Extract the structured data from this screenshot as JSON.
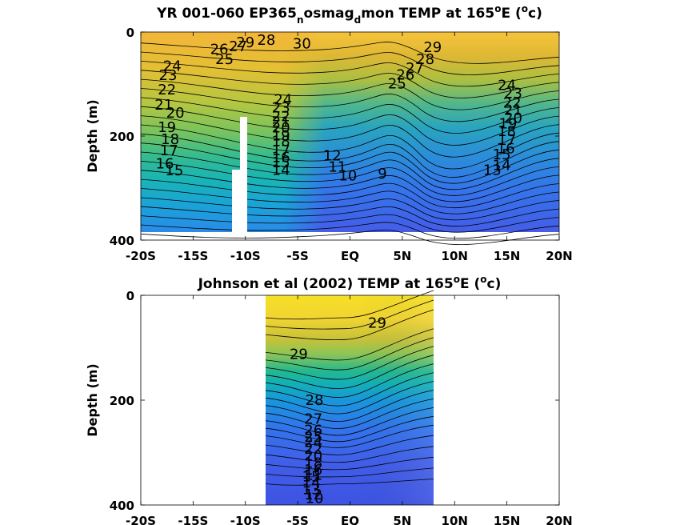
{
  "charts": [
    {
      "title_html": "YR 001-060 EP365<tspan baseline-shift=\"sub\" font-size=\"12\">n</tspan>osmag<tspan baseline-shift=\"sub\" font-size=\"12\">d</tspan>mon TEMP at 165<tspan baseline-shift=\"super\" font-size=\"12\">o</tspan>E (<tspan baseline-shift=\"super\" font-size=\"12\">o</tspan>c)",
      "ylabel": "Depth (m)"
    },
    {
      "title_html": "Johnson et al (2002) TEMP at 165<tspan baseline-shift=\"super\" font-size=\"12\">o</tspan>E (<tspan baseline-shift=\"super\" font-size=\"12\">o</tspan>c)",
      "ylabel": "Depth (m)"
    }
  ],
  "chart_data": [
    {
      "type": "heatmap",
      "title": "YR 001-060 EP365_nosmag_dmon TEMP at 165°E (°c)",
      "xlabel": "",
      "ylabel": "Depth (m)",
      "xlim": [
        -20,
        20
      ],
      "ylim": [
        400,
        0
      ],
      "x_ticks": [
        -20,
        -15,
        -10,
        -5,
        0,
        5,
        10,
        15,
        20
      ],
      "x_tick_labels": [
        "-20S",
        "-15S",
        "-10S",
        "-5S",
        "EQ",
        "5N",
        "10N",
        "15N",
        "20N"
      ],
      "y_ticks": [
        0,
        200,
        400
      ],
      "y_tick_labels": [
        "0",
        "200",
        "400"
      ],
      "data_extent": {
        "x": [
          -20,
          20
        ],
        "depth": [
          0,
          380
        ]
      },
      "masked_region": {
        "x": [
          -10.5,
          -9.8
        ],
        "depth": [
          160,
          380
        ]
      },
      "contour_levels": [
        9,
        10,
        11,
        12,
        13,
        14,
        15,
        16,
        17,
        18,
        19,
        20,
        21,
        22,
        23,
        24,
        25,
        26,
        27,
        28,
        29,
        30
      ],
      "colormap": "parula",
      "color_range": [
        8,
        30
      ],
      "contour_labels": [
        {
          "x": -10,
          "depth": 20,
          "label": "29"
        },
        {
          "x": -8,
          "depth": 15,
          "label": "28"
        },
        {
          "x": -10.7,
          "depth": 28,
          "label": "27"
        },
        {
          "x": -12.5,
          "depth": 33,
          "label": "26"
        },
        {
          "x": -12,
          "depth": 52,
          "label": "25"
        },
        {
          "x": -4.6,
          "depth": 22,
          "label": "30"
        },
        {
          "x": 7.9,
          "depth": 29,
          "label": "29"
        },
        {
          "x": 7.2,
          "depth": 52,
          "label": "28"
        },
        {
          "x": 6.2,
          "depth": 69,
          "label": "27"
        },
        {
          "x": 5.3,
          "depth": 82,
          "label": "26"
        },
        {
          "x": 4.5,
          "depth": 99,
          "label": "25"
        },
        {
          "x": -17,
          "depth": 65,
          "label": "24"
        },
        {
          "x": -17.4,
          "depth": 83,
          "label": "23"
        },
        {
          "x": -17.5,
          "depth": 111,
          "label": "22"
        },
        {
          "x": -17.8,
          "depth": 140,
          "label": "21"
        },
        {
          "x": -16.7,
          "depth": 155,
          "label": "20"
        },
        {
          "x": -17.5,
          "depth": 183,
          "label": "19"
        },
        {
          "x": -17.2,
          "depth": 206,
          "label": "18"
        },
        {
          "x": -17.3,
          "depth": 228,
          "label": "17"
        },
        {
          "x": -17.7,
          "depth": 253,
          "label": "16"
        },
        {
          "x": -16.8,
          "depth": 266,
          "label": "15"
        },
        {
          "x": -6.4,
          "depth": 130,
          "label": "24"
        },
        {
          "x": -6.6,
          "depth": 145,
          "label": "23"
        },
        {
          "x": -6.6,
          "depth": 162,
          "label": "22"
        },
        {
          "x": -6.6,
          "depth": 173,
          "label": "21"
        },
        {
          "x": -6.6,
          "depth": 184,
          "label": "20"
        },
        {
          "x": -6.6,
          "depth": 199,
          "label": "19"
        },
        {
          "x": -6.6,
          "depth": 210,
          "label": "18"
        },
        {
          "x": -6.6,
          "depth": 228,
          "label": "17"
        },
        {
          "x": -6.6,
          "depth": 241,
          "label": "16"
        },
        {
          "x": -6.6,
          "depth": 251,
          "label": "15"
        },
        {
          "x": -6.6,
          "depth": 265,
          "label": "14"
        },
        {
          "x": -1.7,
          "depth": 238,
          "label": "12"
        },
        {
          "x": -1.2,
          "depth": 259,
          "label": "11"
        },
        {
          "x": -0.2,
          "depth": 276,
          "label": "10"
        },
        {
          "x": 3.1,
          "depth": 272,
          "label": "9"
        },
        {
          "x": 15,
          "depth": 102,
          "label": "24"
        },
        {
          "x": 15.6,
          "depth": 118,
          "label": "23"
        },
        {
          "x": 15.5,
          "depth": 136,
          "label": "22"
        },
        {
          "x": 15.6,
          "depth": 150,
          "label": "21"
        },
        {
          "x": 15.6,
          "depth": 165,
          "label": "20"
        },
        {
          "x": 15.1,
          "depth": 176,
          "label": "19"
        },
        {
          "x": 15,
          "depth": 191,
          "label": "18"
        },
        {
          "x": 15,
          "depth": 208,
          "label": "17"
        },
        {
          "x": 14.9,
          "depth": 224,
          "label": "16"
        },
        {
          "x": 14.5,
          "depth": 235,
          "label": "15"
        },
        {
          "x": 14.5,
          "depth": 256,
          "label": "14"
        },
        {
          "x": 13.6,
          "depth": 265,
          "label": "13"
        }
      ]
    },
    {
      "type": "heatmap",
      "title": "Johnson et al (2002) TEMP at 165°E (°c)",
      "xlabel": "",
      "ylabel": "Depth (m)",
      "xlim": [
        -20,
        20
      ],
      "ylim": [
        400,
        0
      ],
      "x_ticks": [
        -20,
        -15,
        -10,
        -5,
        0,
        5,
        10,
        15,
        20
      ],
      "x_tick_labels": [
        "-20S",
        "-15S",
        "-10S",
        "-5S",
        "EQ",
        "5N",
        "10N",
        "15N",
        "20N"
      ],
      "y_ticks": [
        0,
        200,
        400
      ],
      "y_tick_labels": [
        "0",
        "200",
        "400"
      ],
      "data_extent": {
        "x": [
          -8,
          8
        ],
        "depth": [
          0,
          400
        ]
      },
      "contour_levels": [
        10,
        11,
        12,
        13,
        14,
        15,
        16,
        17,
        18,
        19,
        20,
        21,
        22,
        23,
        24,
        25,
        26,
        27,
        28,
        29
      ],
      "colormap": "parula",
      "color_range": [
        8,
        30
      ],
      "contour_labels": [
        {
          "x": -4.9,
          "depth": 112,
          "label": "29"
        },
        {
          "x": 2.6,
          "depth": 53,
          "label": "29"
        },
        {
          "x": -3.4,
          "depth": 200,
          "label": "28"
        },
        {
          "x": -3.5,
          "depth": 236,
          "label": "27"
        },
        {
          "x": -3.5,
          "depth": 257,
          "label": "26"
        },
        {
          "x": -3.5,
          "depth": 270,
          "label": "25"
        },
        {
          "x": -3.5,
          "depth": 280,
          "label": "24"
        },
        {
          "x": -3.5,
          "depth": 293,
          "label": "22"
        },
        {
          "x": -3.5,
          "depth": 306,
          "label": "20"
        },
        {
          "x": -3.5,
          "depth": 320,
          "label": "18"
        },
        {
          "x": -3.5,
          "depth": 333,
          "label": "16"
        },
        {
          "x": -3.7,
          "depth": 346,
          "label": "15"
        },
        {
          "x": -3.7,
          "depth": 357,
          "label": "14"
        },
        {
          "x": -3.7,
          "depth": 370,
          "label": "13"
        },
        {
          "x": -3.5,
          "depth": 380,
          "label": "12"
        },
        {
          "x": -3.5,
          "depth": 343,
          "label": "11"
        },
        {
          "x": -3.4,
          "depth": 387,
          "label": "10"
        }
      ]
    }
  ]
}
